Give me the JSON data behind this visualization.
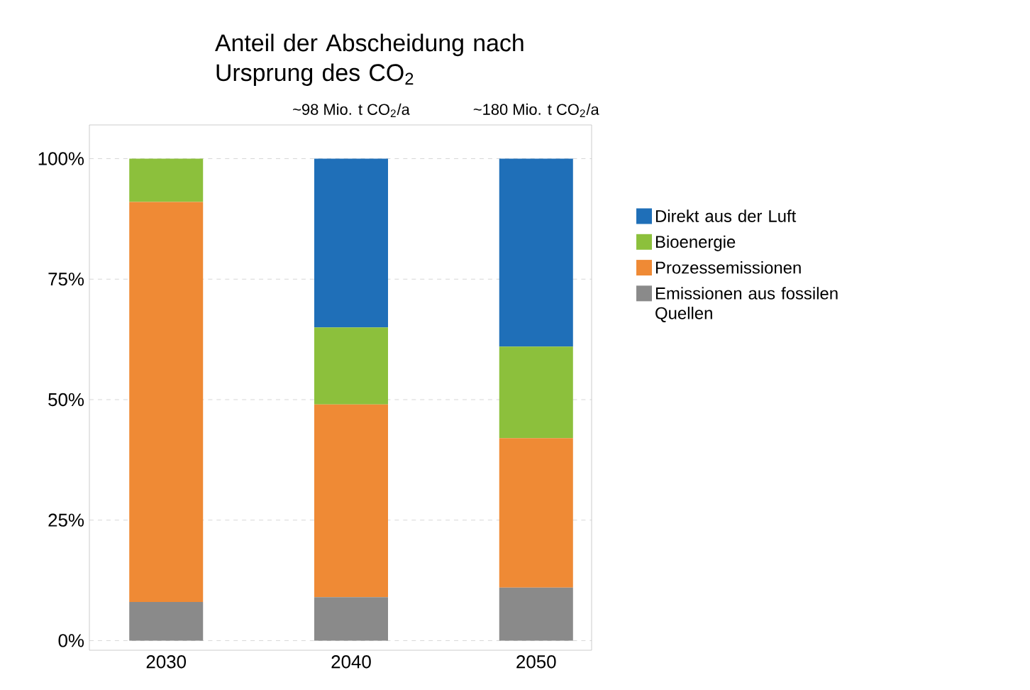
{
  "chart_data": {
    "type": "bar",
    "stacked": true,
    "title": "Anteil der Abscheidung nach Ursprung des CO$_{2}$",
    "categories": [
      "2030",
      "2040",
      "2050"
    ],
    "series": [
      {
        "name": "Emissionen aus fossilen Quellen",
        "color": "#8a8a8a",
        "values": [
          8,
          9,
          11
        ]
      },
      {
        "name": "Prozessemissionen",
        "color": "#ef8a35",
        "values": [
          83,
          40,
          31
        ]
      },
      {
        "name": "Bioenergie",
        "color": "#8cc03c",
        "values": [
          9,
          16,
          19
        ]
      },
      {
        "name": "Direkt aus der Luft",
        "color": "#1f6fb8",
        "values": [
          0,
          35,
          39
        ]
      }
    ],
    "ylim": [
      -2,
      107
    ],
    "yticks": [
      {
        "value": 0,
        "label": "0%"
      },
      {
        "value": 25,
        "label": "25%"
      },
      {
        "value": 50,
        "label": "50%"
      },
      {
        "value": 75,
        "label": "75%"
      },
      {
        "value": 100,
        "label": "100%"
      }
    ],
    "grid": "y",
    "legend": "right",
    "annotations": [
      "~98 Mio. t CO$_{2}$/a",
      "~180 Mio. t CO$_{2}$/a"
    ]
  }
}
